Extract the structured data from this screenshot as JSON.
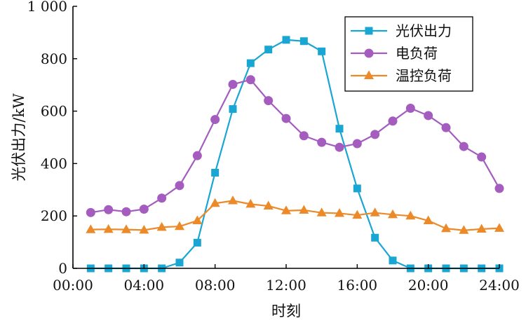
{
  "chart_data": {
    "type": "line",
    "title": "",
    "xlabel": "时刻",
    "ylabel": "光伏出力/kW",
    "xlim": [
      0,
      24
    ],
    "ylim": [
      0,
      1000
    ],
    "x_tick_values": [
      0,
      4,
      8,
      12,
      16,
      20,
      24
    ],
    "x_tick_labels": [
      "00:00",
      "04:00",
      "08:00",
      "12:00",
      "16:00",
      "20:00",
      "24:00"
    ],
    "y_tick_values": [
      0,
      200,
      400,
      600,
      800,
      1000
    ],
    "y_tick_labels": [
      "0",
      "200",
      "400",
      "600",
      "800",
      "1 000"
    ],
    "legend_position": "top-right",
    "grid": false,
    "x": [
      1,
      2,
      3,
      4,
      5,
      6,
      7,
      8,
      9,
      10,
      11,
      12,
      13,
      14,
      15,
      16,
      17,
      18,
      19,
      20,
      21,
      22,
      23,
      24
    ],
    "series": [
      {
        "name": "光伏出力",
        "color": "#1aa6d3",
        "marker": "square",
        "values": [
          0,
          0,
          0,
          0,
          0,
          22,
          98,
          365,
          608,
          783,
          835,
          872,
          867,
          828,
          533,
          305,
          117,
          30,
          0,
          0,
          0,
          0,
          0,
          0
        ]
      },
      {
        "name": "电负荷",
        "color": "#a45cbf",
        "marker": "circle",
        "values": [
          213,
          224,
          216,
          226,
          268,
          316,
          430,
          568,
          702,
          720,
          640,
          572,
          506,
          481,
          462,
          476,
          511,
          562,
          611,
          583,
          537,
          465,
          425,
          305
        ]
      },
      {
        "name": "温控负荷",
        "color": "#ec8a2a",
        "marker": "triangle",
        "values": [
          148,
          149,
          148,
          146,
          157,
          160,
          182,
          248,
          258,
          245,
          238,
          220,
          222,
          212,
          210,
          203,
          212,
          205,
          200,
          182,
          152,
          145,
          150,
          153
        ]
      }
    ]
  }
}
